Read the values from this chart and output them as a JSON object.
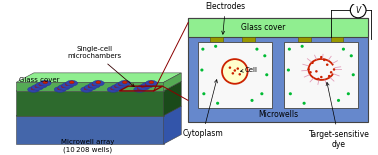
{
  "bg_color": "#ffffff",
  "colors": {
    "glass_green_light": "#90EE90",
    "glass_green_mid": "#55aa55",
    "glass_green_dark": "#2d6a2d",
    "blue_base": "#6688cc",
    "blue_mid": "#5577bb",
    "blue_dark": "#4466aa",
    "electrode_olive": "#999900",
    "cell_red": "#cc2200",
    "cytoplasm_yellow": "#ffffcc",
    "dot_green": "#00bb33",
    "dot_red": "#cc2200",
    "white": "#ffffff",
    "black": "#000000",
    "outline": "#444444",
    "well_white": "#f8f8f8",
    "pink_ray": "#dd88aa"
  },
  "labels": {
    "electrodes": "Electrodes",
    "glass_cover_right": "Glass cover",
    "microwells": "Microwells",
    "cytoplasm": "Cytoplasm",
    "target_sensitive": "Target-sensitive\ndye",
    "cell": "Cell",
    "glass_cover_left": "Glass cover",
    "single_cell": "Single-cell\nmicrochambers",
    "microwell_array": "Microwell array\n(10 208 wells)"
  }
}
